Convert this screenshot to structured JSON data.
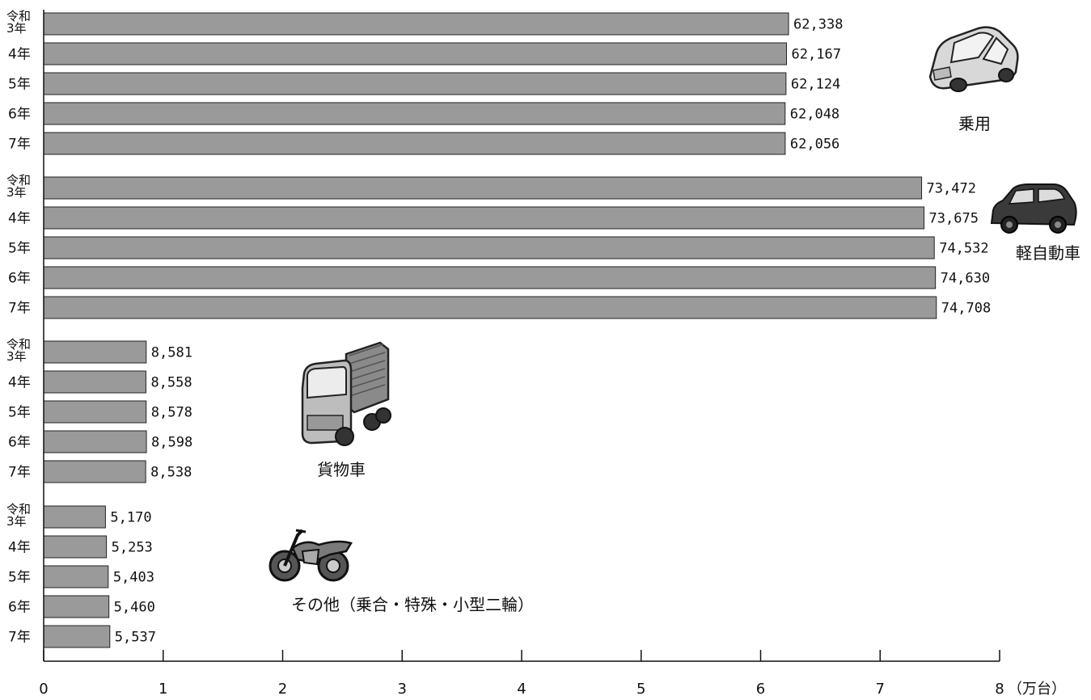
{
  "chart_data": {
    "type": "bar",
    "orientation": "horizontal",
    "unit": "（万台）",
    "x_ticks": [
      "0",
      "1",
      "2",
      "3",
      "4",
      "5",
      "6",
      "7",
      "8"
    ],
    "xlim": [
      0,
      80000
    ],
    "groups": [
      {
        "name": "乗用",
        "icon": "car-icon",
        "years": [
          "令和3年",
          "4年",
          "5年",
          "6年",
          "7年"
        ],
        "values": [
          62338,
          62167,
          62124,
          62048,
          62056
        ],
        "labels": [
          "62,338",
          "62,167",
          "62,124",
          "62,048",
          "62,056"
        ]
      },
      {
        "name": "軽自動車",
        "icon": "kei-car-icon",
        "years": [
          "令和3年",
          "4年",
          "5年",
          "6年",
          "7年"
        ],
        "values": [
          73472,
          73675,
          74532,
          74630,
          74708
        ],
        "labels": [
          "73,472",
          "73,675",
          "74,532",
          "74,630",
          "74,708"
        ]
      },
      {
        "name": "貨物車",
        "icon": "truck-icon",
        "years": [
          "令和3年",
          "4年",
          "5年",
          "6年",
          "7年"
        ],
        "values": [
          8581,
          8558,
          8578,
          8598,
          8538
        ],
        "labels": [
          "8,581",
          "8,558",
          "8,578",
          "8,598",
          "8,538"
        ]
      },
      {
        "name": "その他（乗合・特殊・小型二輪）",
        "icon": "motorcycle-icon",
        "years": [
          "令和3年",
          "4年",
          "5年",
          "6年",
          "7年"
        ],
        "values": [
          5170,
          5253,
          5403,
          5460,
          5537
        ],
        "labels": [
          "5,170",
          "5,253",
          "5,403",
          "5,460",
          "5,537"
        ]
      }
    ],
    "grid": false
  }
}
